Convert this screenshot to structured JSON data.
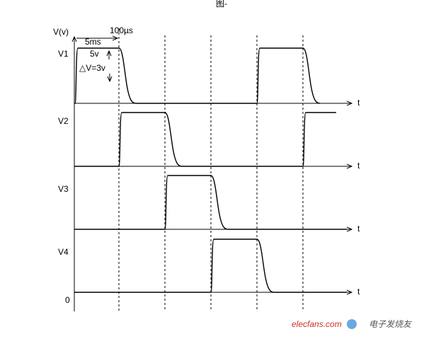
{
  "header": {
    "figure": "图-"
  },
  "axis": {
    "y_label": "V(v)",
    "zero": "0",
    "t_labels": [
      "t",
      "t",
      "t",
      "t"
    ]
  },
  "annotations": {
    "period": "5ms",
    "rise": "100µs",
    "amplitude": "5v",
    "delta": "△V=3v"
  },
  "signals": [
    "V1",
    "V2",
    "V3",
    "V4"
  ],
  "watermark": {
    "site": "elecfans.com",
    "brand": "电子发烧友"
  }
}
